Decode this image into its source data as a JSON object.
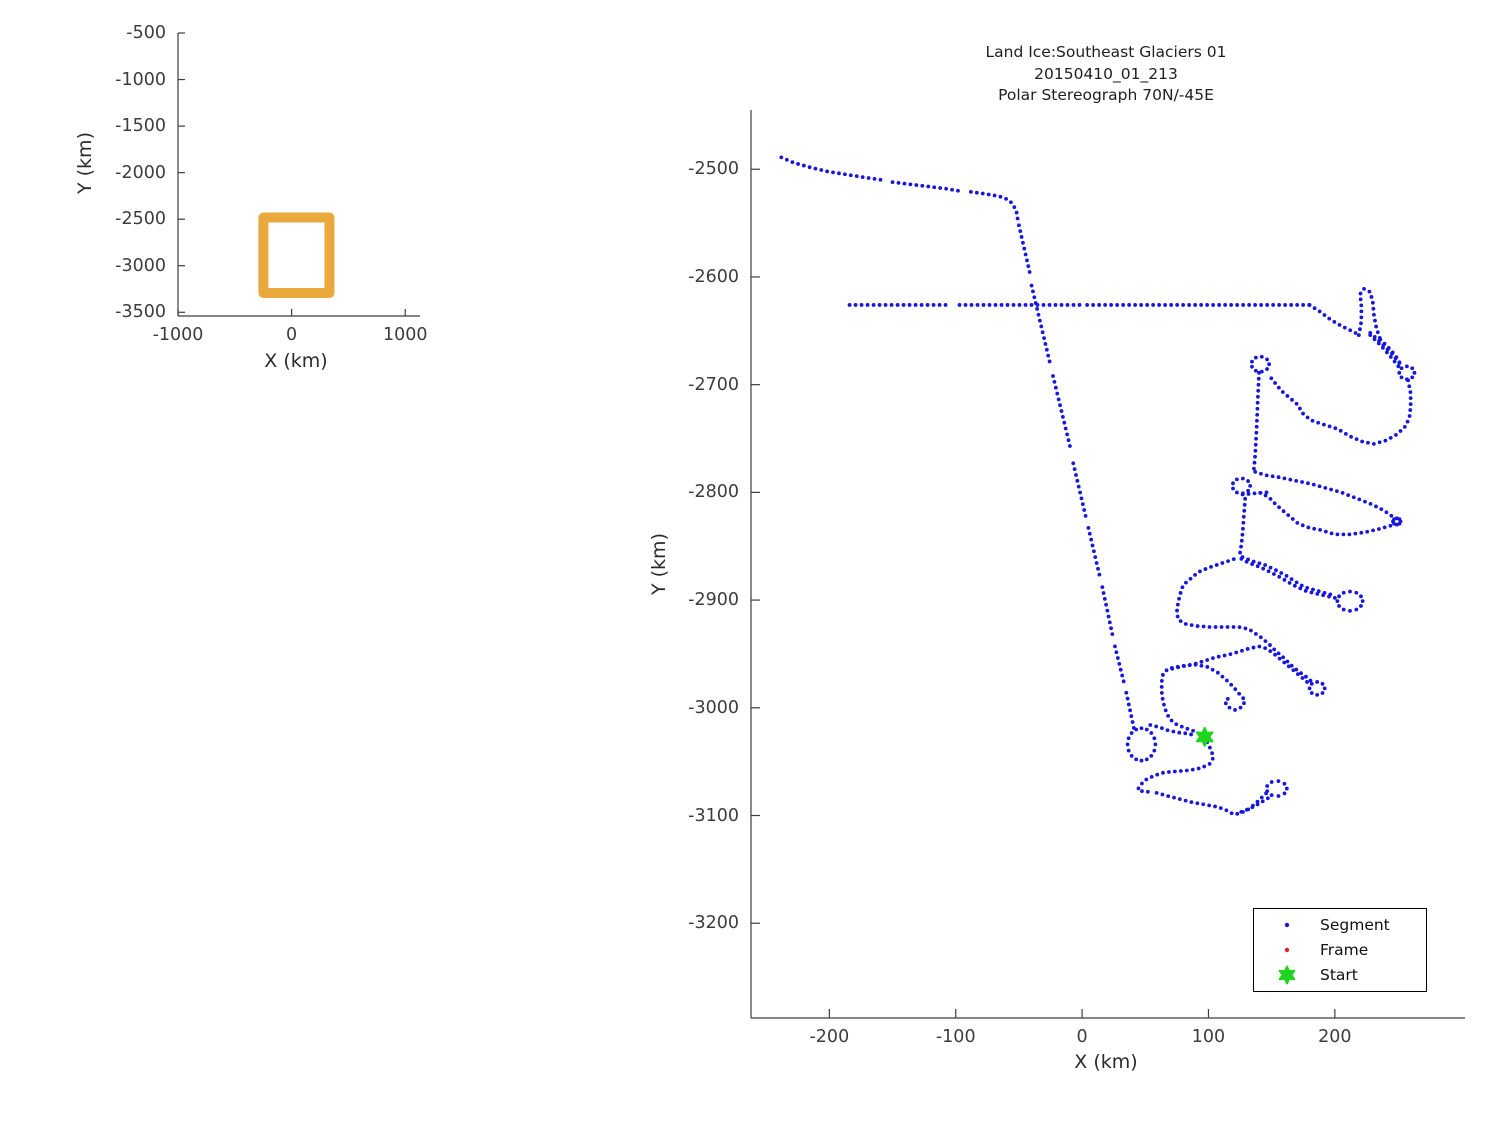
{
  "title": {
    "line1": "Land Ice:Southeast Glaciers 01",
    "line2": "20150410_01_213",
    "line3": "Polar Stereograph 70N/-45E"
  },
  "colors": {
    "track": "#1717dd",
    "start": "#1ed41e",
    "frame": "#e02020",
    "survey_box": "#e9a93c",
    "axis": "#3d3d3d",
    "text": "#1f1f1f"
  },
  "legend": [
    {
      "label": "Segment",
      "marker": "dot",
      "color": "#1717dd"
    },
    {
      "label": "Frame",
      "marker": "dot",
      "color": "#e02020"
    },
    {
      "label": "Start",
      "marker": "star",
      "color": "#1ed41e"
    }
  ],
  "chart_data": {
    "type": "scatter",
    "title_lines": [
      "Land Ice:Southeast Glaciers 01",
      "20150410_01_213",
      "Polar Stereograph 70N/-45E"
    ],
    "overview": {
      "xlabel": "X (km)",
      "ylabel": "Y (km)",
      "xlim": [
        -1000,
        1130
      ],
      "ylim": [
        -3540,
        -500
      ],
      "xticks": [
        -1000,
        0,
        1000
      ],
      "yticks": [
        -500,
        -1000,
        -1500,
        -2000,
        -2500,
        -3000,
        -3500
      ],
      "survey_rect": {
        "x": [
          -248,
          333
        ],
        "y": [
          -3293,
          -2482
        ]
      }
    },
    "main": {
      "xlabel": "X (km)",
      "ylabel": "Y (km)",
      "xlim": [
        -262,
        303
      ],
      "ylim": [
        -3288,
        -2445
      ],
      "xticks": [
        -200,
        -100,
        0,
        100,
        200
      ],
      "yticks": [
        -2500,
        -2600,
        -2700,
        -2800,
        -2900,
        -3000,
        -3100,
        -3200
      ],
      "start_point": [
        97,
        -3027
      ],
      "segments": [
        [
          [
            -238,
            -2489
          ],
          [
            -228,
            -2494
          ],
          [
            -216,
            -2498
          ],
          [
            -202,
            -2502
          ],
          [
            -186,
            -2505
          ],
          [
            -170,
            -2508
          ],
          [
            -158,
            -2510
          ]
        ],
        [
          [
            -150,
            -2512
          ],
          [
            -136,
            -2514
          ],
          [
            -122,
            -2516
          ],
          [
            -108,
            -2518
          ],
          [
            -98,
            -2520
          ]
        ],
        [
          [
            -88,
            -2521
          ],
          [
            -76,
            -2523
          ],
          [
            -66,
            -2525
          ],
          [
            -59,
            -2528
          ],
          [
            -55,
            -2532
          ],
          [
            -52,
            -2539
          ],
          [
            -51,
            -2546
          ]
        ],
        [
          [
            -50,
            -2552
          ],
          [
            -41,
            -2598
          ]
        ],
        [
          [
            -40,
            -2608
          ],
          [
            -25,
            -2682
          ]
        ],
        [
          [
            -23,
            -2692
          ],
          [
            -9,
            -2760
          ]
        ],
        [
          [
            -7,
            -2773
          ],
          [
            3,
            -2823
          ]
        ],
        [
          [
            5,
            -2833
          ],
          [
            14,
            -2878
          ]
        ],
        [
          [
            16,
            -2888
          ],
          [
            24,
            -2932
          ]
        ],
        [
          [
            26,
            -2943
          ],
          [
            33,
            -2976
          ]
        ],
        [
          [
            35,
            -2986
          ],
          [
            41,
            -3019
          ]
        ],
        [
          [
            -184,
            -2626
          ],
          [
            -105,
            -2626
          ]
        ],
        [
          [
            -97,
            -2626
          ],
          [
            -2,
            -2626
          ]
        ],
        [
          [
            4,
            -2626
          ],
          [
            180,
            -2626
          ]
        ],
        [
          [
            180,
            -2626
          ],
          [
            188,
            -2632
          ],
          [
            197,
            -2640
          ],
          [
            206,
            -2646
          ],
          [
            213,
            -2650
          ],
          [
            218,
            -2653
          ]
        ],
        [
          [
            219,
            -2654
          ],
          [
            221,
            -2641
          ],
          [
            221,
            -2627
          ],
          [
            220,
            -2616
          ],
          [
            223,
            -2611
          ],
          [
            228,
            -2614
          ],
          [
            230,
            -2623
          ],
          [
            231,
            -2636
          ],
          [
            233,
            -2648
          ],
          [
            236,
            -2658
          ]
        ],
        [
          [
            236,
            -2658
          ],
          [
            242,
            -2665
          ],
          [
            248,
            -2673
          ],
          [
            252,
            -2681
          ]
        ],
        [
          [
            251,
            -2680
          ],
          [
            245,
            -2671
          ],
          [
            238,
            -2663
          ],
          [
            231,
            -2655
          ],
          [
            226,
            -2650
          ]
        ],
        [
          [
            228,
            -2654
          ],
          [
            235,
            -2662
          ],
          [
            242,
            -2671
          ],
          [
            249,
            -2681
          ],
          [
            253,
            -2687
          ]
        ],
        [
          [
            258,
            -2696
          ],
          [
            260,
            -2708
          ],
          [
            260,
            -2720
          ],
          [
            259,
            -2731
          ],
          [
            255,
            -2740
          ],
          [
            248,
            -2747
          ],
          [
            240,
            -2752
          ],
          [
            231,
            -2755
          ],
          [
            222,
            -2753
          ],
          [
            212,
            -2748
          ],
          [
            202,
            -2741
          ],
          [
            191,
            -2737
          ],
          [
            181,
            -2733
          ],
          [
            174,
            -2726
          ],
          [
            171,
            -2719
          ],
          [
            165,
            -2713
          ],
          [
            158,
            -2706
          ],
          [
            151,
            -2696
          ],
          [
            147,
            -2690
          ]
        ],
        [
          [
            140,
            -2689
          ],
          [
            139,
            -2715
          ],
          [
            138,
            -2743
          ],
          [
            137,
            -2765
          ],
          [
            136,
            -2778
          ]
        ],
        [
          [
            137,
            -2781
          ],
          [
            145,
            -2784
          ],
          [
            156,
            -2786
          ],
          [
            168,
            -2789
          ],
          [
            181,
            -2792
          ],
          [
            193,
            -2796
          ],
          [
            205,
            -2800
          ],
          [
            216,
            -2805
          ],
          [
            227,
            -2810
          ],
          [
            236,
            -2815
          ],
          [
            243,
            -2820
          ],
          [
            247,
            -2824
          ]
        ],
        [
          [
            244,
            -2831
          ],
          [
            235,
            -2834
          ],
          [
            224,
            -2837
          ],
          [
            212,
            -2839
          ],
          [
            200,
            -2839
          ],
          [
            189,
            -2835
          ],
          [
            180,
            -2833
          ],
          [
            171,
            -2829
          ],
          [
            165,
            -2823
          ],
          [
            159,
            -2817
          ],
          [
            154,
            -2812
          ],
          [
            149,
            -2806
          ],
          [
            144,
            -2802
          ],
          [
            140,
            -2800
          ]
        ],
        [
          [
            127,
            -2802
          ],
          [
            136,
            -2801
          ],
          [
            146,
            -2800
          ]
        ],
        [
          [
            129,
            -2806
          ],
          [
            128,
            -2822
          ],
          [
            127,
            -2838
          ],
          [
            126,
            -2849
          ],
          [
            125,
            -2856
          ]
        ],
        [
          [
            127,
            -2860
          ],
          [
            135,
            -2864
          ],
          [
            144,
            -2867
          ],
          [
            153,
            -2872
          ],
          [
            161,
            -2877
          ],
          [
            169,
            -2883
          ],
          [
            176,
            -2888
          ],
          [
            185,
            -2891
          ],
          [
            194,
            -2894
          ],
          [
            201,
            -2896
          ]
        ],
        [
          [
            200,
            -2898
          ],
          [
            189,
            -2895
          ],
          [
            178,
            -2892
          ],
          [
            167,
            -2886
          ],
          [
            157,
            -2879
          ],
          [
            149,
            -2874
          ],
          [
            140,
            -2869
          ],
          [
            131,
            -2865
          ],
          [
            125,
            -2861
          ]
        ],
        [
          [
            120,
            -2862
          ],
          [
            110,
            -2866
          ],
          [
            100,
            -2870
          ],
          [
            92,
            -2874
          ],
          [
            86,
            -2880
          ],
          [
            80,
            -2886
          ],
          [
            78,
            -2893
          ],
          [
            76,
            -2902
          ],
          [
            75,
            -2911
          ],
          [
            76,
            -2918
          ],
          [
            81,
            -2922
          ],
          [
            90,
            -2924
          ],
          [
            101,
            -2925
          ],
          [
            113,
            -2925
          ],
          [
            124,
            -2925
          ],
          [
            132,
            -2927
          ],
          [
            137,
            -2931
          ],
          [
            142,
            -2935
          ],
          [
            148,
            -2941
          ],
          [
            153,
            -2947
          ],
          [
            159,
            -2953
          ],
          [
            165,
            -2960
          ],
          [
            171,
            -2966
          ],
          [
            177,
            -2971
          ],
          [
            181,
            -2975
          ]
        ],
        [
          [
            178,
            -2976
          ],
          [
            169,
            -2967
          ],
          [
            160,
            -2958
          ],
          [
            152,
            -2950
          ],
          [
            146,
            -2945
          ],
          [
            140,
            -2943
          ],
          [
            132,
            -2945
          ],
          [
            124,
            -2948
          ],
          [
            115,
            -2951
          ],
          [
            106,
            -2953
          ],
          [
            98,
            -2956
          ],
          [
            90,
            -2959
          ],
          [
            82,
            -2961
          ],
          [
            74,
            -2963
          ],
          [
            67,
            -2965
          ],
          [
            64,
            -2969
          ],
          [
            63,
            -2976
          ],
          [
            63,
            -2985
          ],
          [
            64,
            -2994
          ],
          [
            66,
            -3002
          ],
          [
            69,
            -3010
          ],
          [
            74,
            -3015
          ],
          [
            80,
            -3018
          ],
          [
            87,
            -3021
          ],
          [
            92,
            -3023
          ]
        ],
        [
          [
            71,
            -2963
          ],
          [
            80,
            -2961
          ],
          [
            90,
            -2960
          ],
          [
            99,
            -2962
          ],
          [
            107,
            -2967
          ],
          [
            114,
            -2974
          ],
          [
            120,
            -2981
          ],
          [
            125,
            -2988
          ],
          [
            129,
            -2993
          ],
          [
            127,
            -2999
          ],
          [
            121,
            -3002
          ],
          [
            115,
            -2999
          ],
          [
            113,
            -2994
          ],
          [
            117,
            -2990
          ]
        ],
        [
          [
            54,
            -3016
          ],
          [
            61,
            -3018
          ],
          [
            68,
            -3021
          ],
          [
            76,
            -3023
          ],
          [
            84,
            -3024
          ],
          [
            90,
            -3026
          ]
        ],
        [
          [
            99,
            -3032
          ],
          [
            102,
            -3039
          ],
          [
            104,
            -3046
          ],
          [
            101,
            -3052
          ],
          [
            94,
            -3056
          ],
          [
            85,
            -3058
          ],
          [
            75,
            -3059
          ],
          [
            65,
            -3060
          ],
          [
            57,
            -3063
          ],
          [
            50,
            -3067
          ],
          [
            46,
            -3072
          ],
          [
            44,
            -3076
          ],
          [
            49,
            -3078
          ],
          [
            55,
            -3078
          ]
        ],
        [
          [
            59,
            -3079
          ],
          [
            68,
            -3082
          ],
          [
            78,
            -3085
          ],
          [
            88,
            -3088
          ],
          [
            98,
            -3090
          ],
          [
            107,
            -3092
          ],
          [
            114,
            -3095
          ],
          [
            120,
            -3099
          ],
          [
            125,
            -3098
          ],
          [
            132,
            -3094
          ],
          [
            139,
            -3087
          ],
          [
            145,
            -3080
          ],
          [
            148,
            -3077
          ]
        ],
        [
          [
            147,
            -3084
          ],
          [
            140,
            -3089
          ],
          [
            132,
            -3094
          ],
          [
            125,
            -3097
          ]
        ]
      ],
      "loops": [
        {
          "c": [
            257,
            -2689
          ],
          "r": [
            6,
            6
          ]
        },
        {
          "c": [
            141,
            -2681
          ],
          "r": [
            7,
            7
          ]
        },
        {
          "c": [
            249,
            -2827
          ],
          "r": [
            3,
            3
          ]
        },
        {
          "c": [
            126,
            -2794
          ],
          "r": [
            7,
            7
          ]
        },
        {
          "c": [
            212,
            -2901
          ],
          "r": [
            10,
            9
          ]
        },
        {
          "c": [
            186,
            -2982
          ],
          "r": [
            6,
            6
          ]
        },
        {
          "c": [
            47,
            -3034
          ],
          "r": [
            11,
            15
          ]
        },
        {
          "c": [
            154,
            -3075
          ],
          "r": [
            8,
            7
          ]
        }
      ]
    }
  }
}
